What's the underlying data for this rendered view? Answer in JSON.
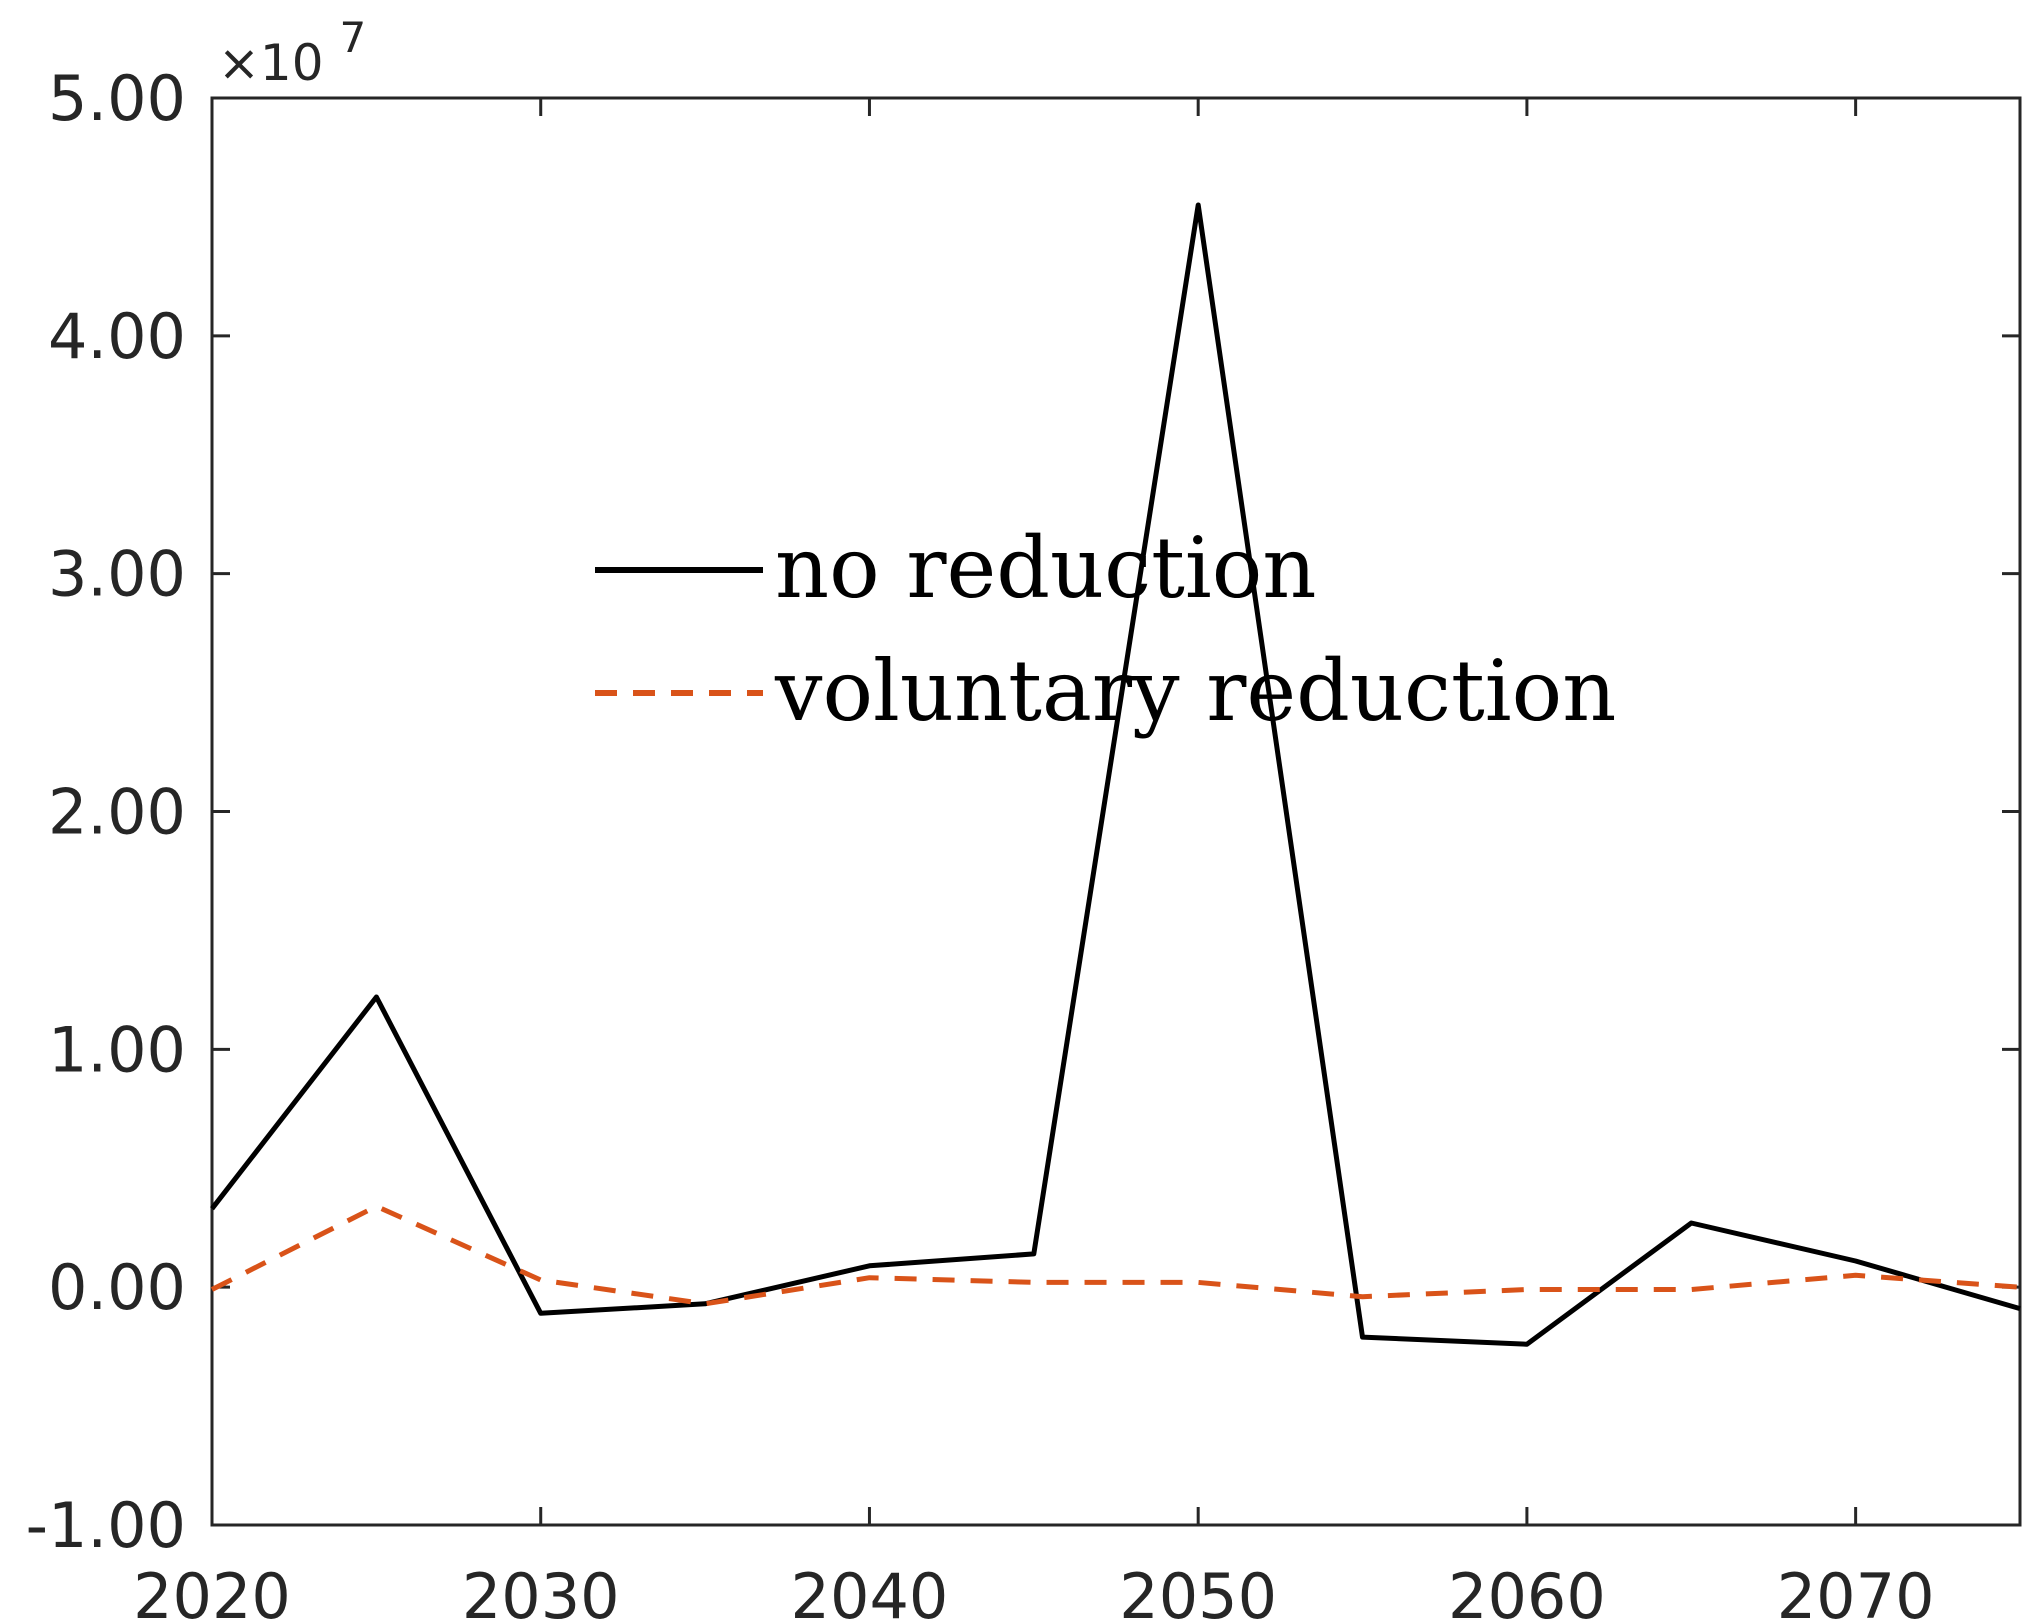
{
  "chart_data": {
    "type": "line",
    "title": "",
    "xlabel": "",
    "ylabel": "",
    "xlim": [
      2020,
      2075
    ],
    "ylim": [
      -10000000,
      50000000
    ],
    "y_exponent_label": {
      "prefix": "×10",
      "power": "7"
    },
    "x_ticks": [
      2020,
      2030,
      2040,
      2050,
      2060,
      2070
    ],
    "x_tick_labels": [
      "2020",
      "2030",
      "2040",
      "2050",
      "2060",
      "2070"
    ],
    "y_ticks": [
      -10000000,
      0,
      10000000,
      20000000,
      30000000,
      40000000,
      50000000
    ],
    "y_tick_labels": [
      "-1.00",
      "0.00",
      "1.00",
      "2.00",
      "3.00",
      "4.00",
      "5.00"
    ],
    "grid": false,
    "legend_placement": "center",
    "x": [
      2020,
      2025,
      2030,
      2035,
      2040,
      2045,
      2050,
      2055,
      2060,
      2065,
      2070,
      2075
    ],
    "series": [
      {
        "name": "no reduction",
        "color": "#000000",
        "dash": "solid",
        "values": [
          3300000,
          12200000,
          -1100000,
          -700000,
          900000,
          1400000,
          45500000,
          -2100000,
          -2400000,
          2700000,
          1100000,
          -900000
        ]
      },
      {
        "name": "voluntary reduction",
        "color": "#D95319",
        "dash": "dashed",
        "values": [
          -100000,
          3400000,
          300000,
          -700000,
          400000,
          200000,
          200000,
          -400000,
          -100000,
          -100000,
          500000,
          0
        ]
      }
    ]
  }
}
